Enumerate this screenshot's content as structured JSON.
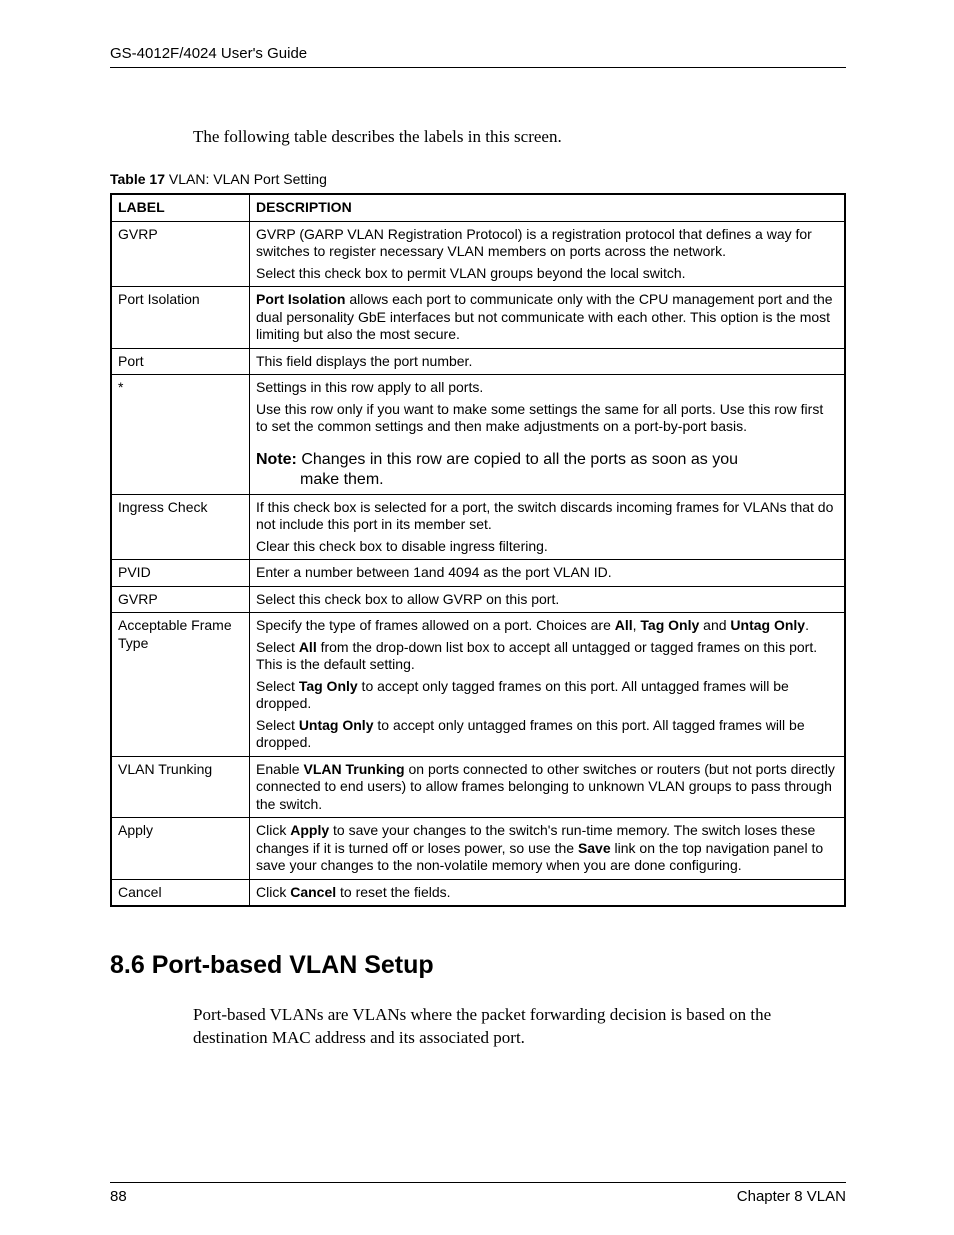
{
  "header": "GS-4012F/4024 User's Guide",
  "intro": "The following table describes the labels in this screen.",
  "table_caption_bold": "Table 17",
  "table_caption_rest": "   VLAN: VLAN Port Setting",
  "columns": {
    "label": "LABEL",
    "desc": "DESCRIPTION"
  },
  "rows": {
    "r0": {
      "label": "GVRP"
    },
    "r1": {
      "label": "Port Isolation"
    },
    "r2": {
      "label": "Port",
      "desc": "This field displays the port number."
    },
    "r3": {
      "label": "*"
    },
    "r4": {
      "label": "Ingress Check"
    },
    "r5": {
      "label": "PVID",
      "desc": "Enter a number between 1and 4094 as the port VLAN ID."
    },
    "r6": {
      "label": "GVRP",
      "desc": "Select this check box to allow GVRP on this port."
    },
    "r7": {
      "label": "Acceptable Frame Type"
    },
    "r8": {
      "label": "VLAN Trunking"
    },
    "r9": {
      "label": "Apply"
    },
    "r10": {
      "label": "Cancel"
    }
  },
  "section_heading": "8.6  Port-based VLAN Setup",
  "section_body": "Port-based VLANs are VLANs where the packet forwarding decision is based on the destination MAC address and its associated port.",
  "footer": {
    "page_num": "88",
    "chapter": "Chapter 8 VLAN"
  }
}
